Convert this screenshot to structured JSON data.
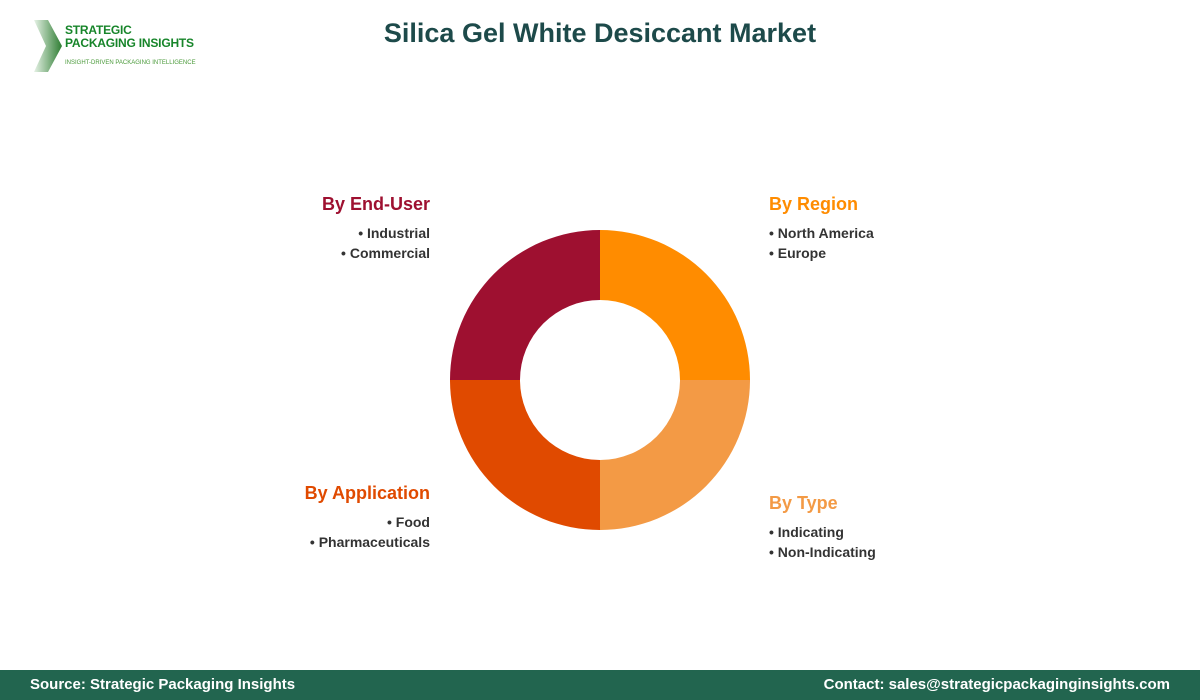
{
  "title": "Silica Gel White Desiccant Market",
  "logo": {
    "line1": "STRATEGIC",
    "line2": "PACKAGING INSIGHTS",
    "tagline": "INSIGHT-DRIVEN PACKAGING INTELLIGENCE"
  },
  "chart_data": {
    "type": "pie",
    "donut": true,
    "segments": [
      {
        "name": "By Region",
        "value": 25,
        "color": "#FF8C00",
        "items": [
          "North America",
          "Europe"
        ]
      },
      {
        "name": "By Type",
        "value": 25,
        "color": "#F39A45",
        "items": [
          "Indicating",
          "Non-Indicating"
        ]
      },
      {
        "name": "By Application",
        "value": 25,
        "color": "#E04A00",
        "items": [
          "Food",
          "Pharmaceuticals"
        ]
      },
      {
        "name": "By End-User",
        "value": 25,
        "color": "#9E1030",
        "items": [
          "Industrial",
          "Commercial"
        ]
      }
    ]
  },
  "footer": {
    "source": "Source: Strategic Packaging Insights",
    "contact": "Contact: sales@strategicpackaginginsights.com"
  }
}
